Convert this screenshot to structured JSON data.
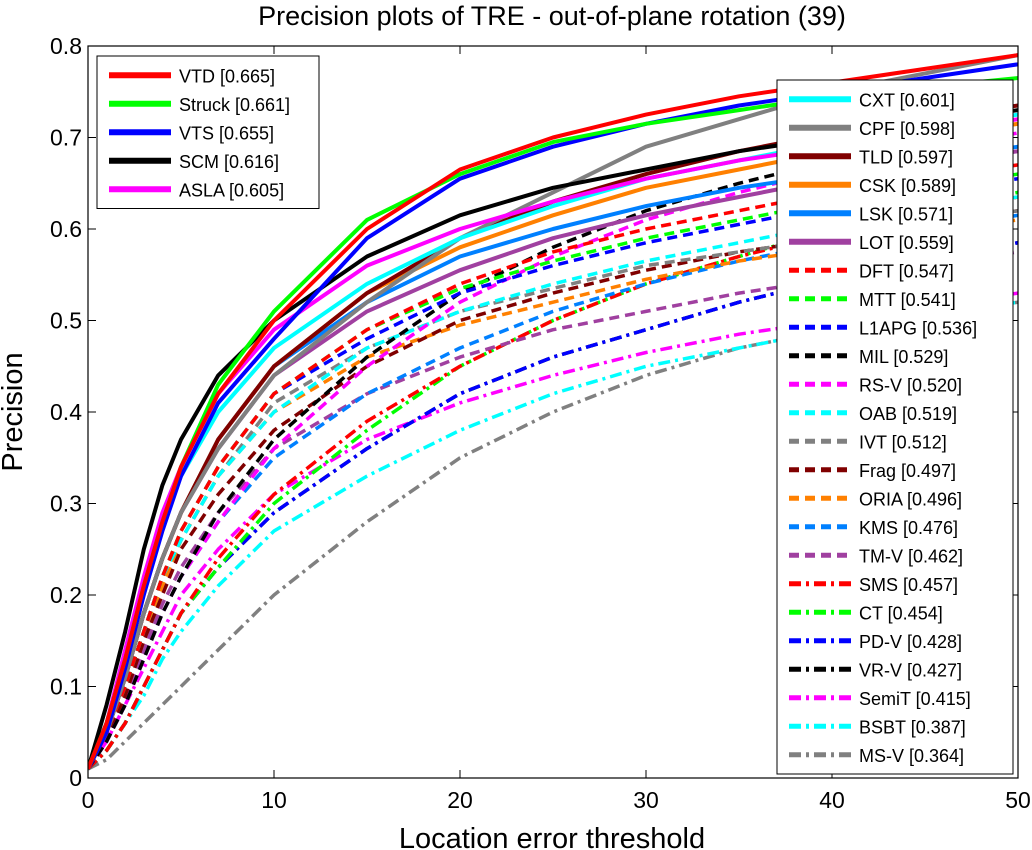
{
  "chart_data": {
    "type": "line",
    "title": "Precision plots of TRE - out-of-plane rotation (39)",
    "xlabel": "Location error threshold",
    "ylabel": "Precision",
    "xlim": [
      0,
      50
    ],
    "ylim": [
      0,
      0.8
    ],
    "xticks": [
      0,
      10,
      20,
      30,
      40,
      50
    ],
    "yticks": [
      0,
      0.1,
      0.2,
      0.3,
      0.4,
      0.5,
      0.6,
      0.7,
      0.8
    ],
    "x": [
      0,
      1,
      2,
      3,
      4,
      5,
      7,
      10,
      15,
      20,
      25,
      30,
      35,
      40,
      45,
      50
    ],
    "grid": false,
    "legend_placement": [
      "top-left",
      "right"
    ],
    "series": [
      {
        "name": "VTD [0.665]",
        "color": "#ff0000",
        "style": "solid",
        "group": 0,
        "values": [
          0.01,
          0.06,
          0.13,
          0.21,
          0.28,
          0.34,
          0.42,
          0.5,
          0.6,
          0.665,
          0.7,
          0.725,
          0.745,
          0.76,
          0.775,
          0.79
        ]
      },
      {
        "name": "Struck [0.661]",
        "color": "#00ff00",
        "style": "solid",
        "group": 0,
        "values": [
          0.01,
          0.06,
          0.13,
          0.21,
          0.28,
          0.34,
          0.43,
          0.51,
          0.61,
          0.66,
          0.695,
          0.715,
          0.73,
          0.745,
          0.755,
          0.765
        ]
      },
      {
        "name": "VTS [0.655]",
        "color": "#0000ff",
        "style": "solid",
        "group": 0,
        "values": [
          0.01,
          0.05,
          0.12,
          0.2,
          0.27,
          0.33,
          0.41,
          0.48,
          0.59,
          0.655,
          0.69,
          0.715,
          0.735,
          0.75,
          0.765,
          0.78
        ]
      },
      {
        "name": "SCM [0.616]",
        "color": "#000000",
        "style": "solid",
        "group": 0,
        "values": [
          0.01,
          0.08,
          0.16,
          0.25,
          0.32,
          0.37,
          0.44,
          0.5,
          0.57,
          0.615,
          0.645,
          0.665,
          0.685,
          0.7,
          0.715,
          0.73
        ]
      },
      {
        "name": "ASLA [0.605]",
        "color": "#ff00ff",
        "style": "solid",
        "group": 0,
        "values": [
          0.01,
          0.06,
          0.14,
          0.22,
          0.29,
          0.34,
          0.42,
          0.49,
          0.56,
          0.6,
          0.63,
          0.655,
          0.675,
          0.69,
          0.705,
          0.72
        ]
      },
      {
        "name": "CXT [0.601]",
        "color": "#00ffff",
        "style": "solid",
        "group": 1,
        "values": [
          0.01,
          0.06,
          0.13,
          0.21,
          0.28,
          0.33,
          0.4,
          0.47,
          0.54,
          0.59,
          0.625,
          0.655,
          0.675,
          0.695,
          0.71,
          0.725
        ]
      },
      {
        "name": "CPF [0.598]",
        "color": "#808080",
        "style": "solid",
        "group": 1,
        "values": [
          0.01,
          0.05,
          0.11,
          0.18,
          0.24,
          0.29,
          0.36,
          0.44,
          0.52,
          0.59,
          0.64,
          0.69,
          0.72,
          0.75,
          0.77,
          0.79
        ]
      },
      {
        "name": "TLD [0.597]",
        "color": "#800000",
        "style": "solid",
        "group": 1,
        "values": [
          0.01,
          0.05,
          0.11,
          0.18,
          0.24,
          0.29,
          0.37,
          0.45,
          0.53,
          0.59,
          0.63,
          0.66,
          0.685,
          0.705,
          0.72,
          0.735
        ]
      },
      {
        "name": "CSK [0.589]",
        "color": "#ff8000",
        "style": "solid",
        "group": 1,
        "values": [
          0.01,
          0.05,
          0.11,
          0.18,
          0.24,
          0.29,
          0.37,
          0.45,
          0.53,
          0.58,
          0.615,
          0.645,
          0.665,
          0.685,
          0.7,
          0.715
        ]
      },
      {
        "name": "LSK [0.571]",
        "color": "#0080ff",
        "style": "solid",
        "group": 1,
        "values": [
          0.01,
          0.05,
          0.11,
          0.18,
          0.24,
          0.29,
          0.37,
          0.45,
          0.52,
          0.57,
          0.6,
          0.625,
          0.645,
          0.66,
          0.675,
          0.69
        ]
      },
      {
        "name": "LOT [0.559]",
        "color": "#a040a0",
        "style": "solid",
        "group": 1,
        "values": [
          0.01,
          0.05,
          0.11,
          0.18,
          0.24,
          0.29,
          0.36,
          0.44,
          0.51,
          0.555,
          0.59,
          0.615,
          0.635,
          0.655,
          0.67,
          0.685
        ]
      },
      {
        "name": "DFT [0.547]",
        "color": "#ff0000",
        "style": "dashed",
        "group": 1,
        "values": [
          0.01,
          0.05,
          0.1,
          0.16,
          0.22,
          0.27,
          0.34,
          0.42,
          0.49,
          0.54,
          0.575,
          0.6,
          0.62,
          0.64,
          0.655,
          0.67
        ]
      },
      {
        "name": "MTT [0.541]",
        "color": "#00ff00",
        "style": "dashed",
        "group": 1,
        "values": [
          0.01,
          0.05,
          0.1,
          0.16,
          0.22,
          0.27,
          0.34,
          0.42,
          0.49,
          0.535,
          0.565,
          0.59,
          0.61,
          0.63,
          0.645,
          0.66
        ]
      },
      {
        "name": "L1APG [0.536]",
        "color": "#0000ff",
        "style": "dashed",
        "group": 1,
        "values": [
          0.01,
          0.05,
          0.1,
          0.16,
          0.22,
          0.27,
          0.34,
          0.42,
          0.48,
          0.53,
          0.56,
          0.585,
          0.605,
          0.625,
          0.64,
          0.655
        ]
      },
      {
        "name": "MIL [0.529]",
        "color": "#000000",
        "style": "dashed",
        "group": 1,
        "values": [
          0.01,
          0.04,
          0.08,
          0.13,
          0.18,
          0.22,
          0.29,
          0.37,
          0.46,
          0.53,
          0.58,
          0.62,
          0.65,
          0.675,
          0.695,
          0.715
        ]
      },
      {
        "name": "RS-V [0.520]",
        "color": "#ff00ff",
        "style": "dashed",
        "group": 1,
        "values": [
          0.01,
          0.04,
          0.08,
          0.13,
          0.18,
          0.22,
          0.28,
          0.36,
          0.45,
          0.52,
          0.57,
          0.61,
          0.64,
          0.665,
          0.685,
          0.705
        ]
      },
      {
        "name": "OAB [0.519]",
        "color": "#00ffff",
        "style": "dashed",
        "group": 1,
        "values": [
          0.01,
          0.05,
          0.1,
          0.16,
          0.22,
          0.26,
          0.33,
          0.4,
          0.47,
          0.51,
          0.54,
          0.565,
          0.585,
          0.605,
          0.62,
          0.635
        ]
      },
      {
        "name": "IVT [0.512]",
        "color": "#808080",
        "style": "dashed",
        "group": 1,
        "values": [
          0.01,
          0.05,
          0.1,
          0.16,
          0.22,
          0.26,
          0.33,
          0.41,
          0.47,
          0.51,
          0.535,
          0.56,
          0.575,
          0.59,
          0.605,
          0.62
        ]
      },
      {
        "name": "Frag [0.497]",
        "color": "#800000",
        "style": "dashed",
        "group": 1,
        "values": [
          0.01,
          0.04,
          0.09,
          0.15,
          0.2,
          0.25,
          0.31,
          0.38,
          0.45,
          0.5,
          0.53,
          0.555,
          0.575,
          0.59,
          0.605,
          0.62
        ]
      },
      {
        "name": "ORIA [0.496]",
        "color": "#ff8000",
        "style": "dashed",
        "group": 1,
        "values": [
          0.01,
          0.05,
          0.1,
          0.16,
          0.21,
          0.26,
          0.33,
          0.4,
          0.46,
          0.495,
          0.52,
          0.545,
          0.565,
          0.58,
          0.595,
          0.61
        ]
      },
      {
        "name": "KMS [0.476]",
        "color": "#0080ff",
        "style": "dashed",
        "group": 1,
        "values": [
          0.01,
          0.04,
          0.08,
          0.13,
          0.18,
          0.22,
          0.28,
          0.35,
          0.42,
          0.47,
          0.51,
          0.54,
          0.565,
          0.585,
          0.6,
          0.615
        ]
      },
      {
        "name": "TM-V [0.462]",
        "color": "#a040a0",
        "style": "dashed",
        "group": 1,
        "values": [
          0.01,
          0.04,
          0.09,
          0.14,
          0.19,
          0.23,
          0.29,
          0.36,
          0.42,
          0.46,
          0.49,
          0.51,
          0.53,
          0.545,
          0.56,
          0.575
        ]
      },
      {
        "name": "SMS [0.457]",
        "color": "#ff0000",
        "style": "dashdot",
        "group": 1,
        "values": [
          0.01,
          0.03,
          0.06,
          0.1,
          0.14,
          0.18,
          0.24,
          0.31,
          0.39,
          0.45,
          0.5,
          0.54,
          0.57,
          0.595,
          0.615,
          0.635
        ]
      },
      {
        "name": "CT [0.454]",
        "color": "#00ff00",
        "style": "dashdot",
        "group": 1,
        "values": [
          0.01,
          0.03,
          0.06,
          0.1,
          0.14,
          0.18,
          0.23,
          0.3,
          0.38,
          0.45,
          0.5,
          0.54,
          0.57,
          0.6,
          0.62,
          0.64
        ]
      },
      {
        "name": "PD-V [0.428]",
        "color": "#0000ff",
        "style": "dashdot",
        "group": 1,
        "values": [
          0.01,
          0.03,
          0.06,
          0.1,
          0.14,
          0.18,
          0.23,
          0.29,
          0.36,
          0.42,
          0.46,
          0.49,
          0.52,
          0.545,
          0.565,
          0.585
        ]
      },
      {
        "name": "VR-V [0.427]",
        "color": "#000000",
        "style": "dashdot",
        "group": 1,
        "values": [
          0.01,
          0.03,
          0.06,
          0.1,
          0.14,
          0.18,
          0.23,
          0.29,
          0.36,
          0.42,
          0.46,
          0.49,
          0.52,
          0.545,
          0.565,
          0.585
        ]
      },
      {
        "name": "SemiT [0.415]",
        "color": "#ff00ff",
        "style": "dashdot",
        "group": 1,
        "values": [
          0.01,
          0.04,
          0.08,
          0.12,
          0.16,
          0.2,
          0.25,
          0.31,
          0.37,
          0.41,
          0.44,
          0.465,
          0.485,
          0.5,
          0.515,
          0.53
        ]
      },
      {
        "name": "BSBT [0.387]",
        "color": "#00ffff",
        "style": "dashdot",
        "group": 1,
        "values": [
          0.01,
          0.03,
          0.06,
          0.09,
          0.13,
          0.16,
          0.21,
          0.27,
          0.33,
          0.38,
          0.42,
          0.45,
          0.47,
          0.49,
          0.505,
          0.52
        ]
      },
      {
        "name": "MS-V [0.364]",
        "color": "#808080",
        "style": "dashdot",
        "group": 1,
        "values": [
          0.01,
          0.02,
          0.04,
          0.06,
          0.08,
          0.1,
          0.14,
          0.2,
          0.28,
          0.35,
          0.4,
          0.44,
          0.47,
          0.49,
          0.505,
          0.52
        ]
      }
    ]
  }
}
